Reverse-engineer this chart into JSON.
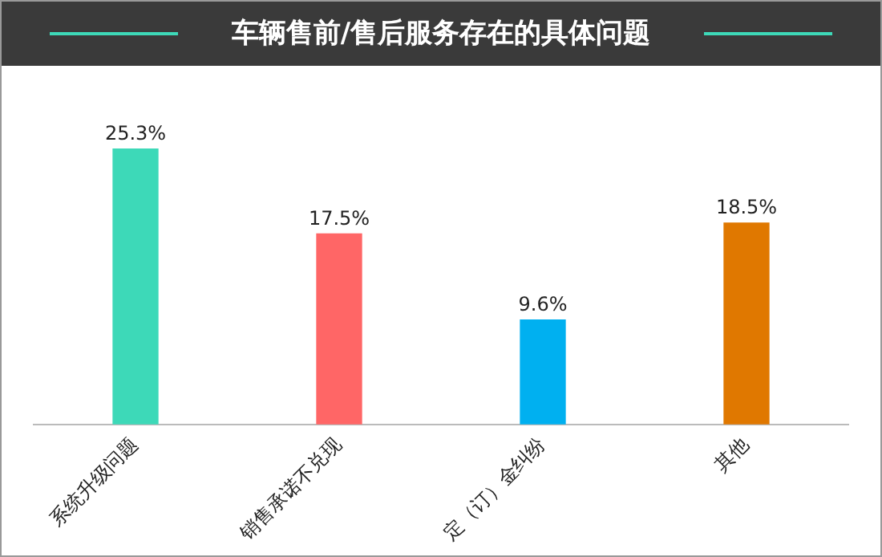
{
  "chart_data": {
    "type": "bar",
    "title": "车辆售前/售后服务存在的具体问题",
    "categories": [
      "系统升级问题",
      "销售承诺不兑现",
      "定（订）金纠纷",
      "其他"
    ],
    "values": [
      25.3,
      17.5,
      9.6,
      18.5
    ],
    "colors": [
      "#3dd9b8",
      "#ff6666",
      "#00b0f0",
      "#e07800"
    ],
    "value_labels": [
      "25.3%",
      "17.5%",
      "9.6%",
      "18.5%"
    ],
    "grid": false,
    "legend": false
  }
}
